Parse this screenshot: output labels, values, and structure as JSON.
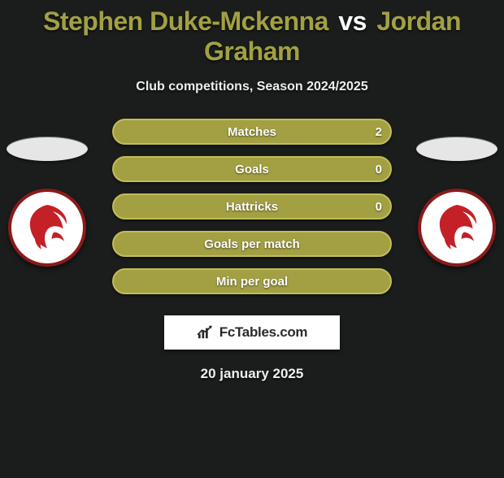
{
  "title": {
    "player1": "Stephen Duke-Mckenna",
    "vs": "vs",
    "player2": "Jordan Graham"
  },
  "subtitle": "Club competitions, Season 2024/2025",
  "colors": {
    "p1_text": "#a3a043",
    "p2_text": "#a3a043",
    "p1_plate": "#e6e6e6",
    "p2_plate": "#e6e6e6",
    "crest_primary": "#c42027",
    "crest_ring": "#8a1a1a"
  },
  "brand": "FcTables.com",
  "date": "20 january 2025",
  "bars": [
    {
      "label": "Matches",
      "left": "",
      "right": "2",
      "fill": "#a3a043",
      "border": "#c2bd57"
    },
    {
      "label": "Goals",
      "left": "",
      "right": "0",
      "fill": "#a3a043",
      "border": "#c2bd57"
    },
    {
      "label": "Hattricks",
      "left": "",
      "right": "0",
      "fill": "#a3a043",
      "border": "#c2bd57"
    },
    {
      "label": "Goals per match",
      "left": "",
      "right": "",
      "fill": "#a3a043",
      "border": "#c2bd57"
    },
    {
      "label": "Min per goal",
      "left": "",
      "right": "",
      "fill": "#a3a043",
      "border": "#c2bd57"
    }
  ]
}
